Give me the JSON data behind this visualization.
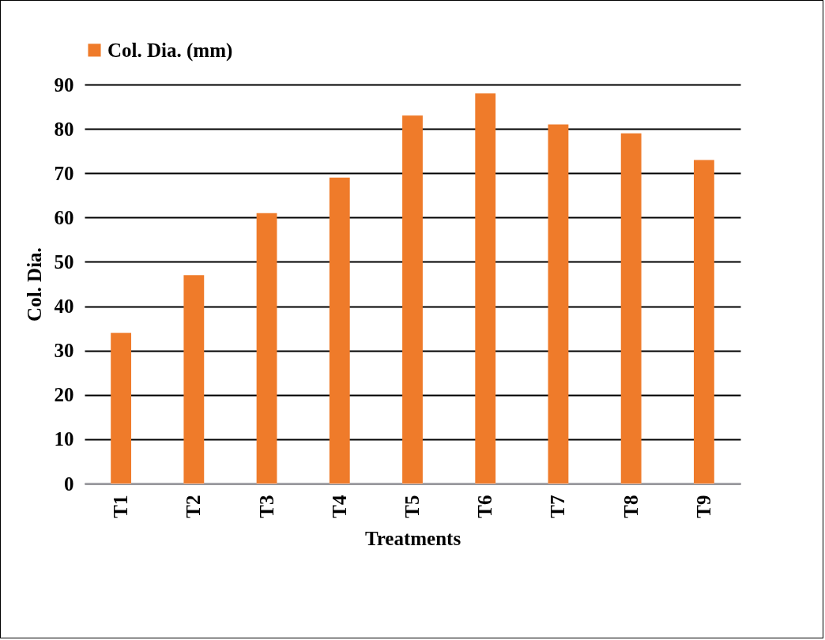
{
  "chart_data": {
    "type": "bar",
    "xlabel": "Treatments",
    "ylabel": "Col. Dia.",
    "categories": [
      "T1",
      "T2",
      "T3",
      "T4",
      "T5",
      "T6",
      "T7",
      "T8",
      "T9"
    ],
    "series": [
      {
        "name": "Col. Dia. (mm)",
        "color": "#ef7b2a",
        "values": [
          34,
          47,
          61,
          69,
          83,
          88,
          81,
          79,
          73
        ]
      }
    ],
    "ylim": [
      0,
      90
    ],
    "yticks": [
      0,
      10,
      20,
      30,
      40,
      50,
      60,
      70,
      80,
      90
    ],
    "grid": "y",
    "legend": "top"
  }
}
